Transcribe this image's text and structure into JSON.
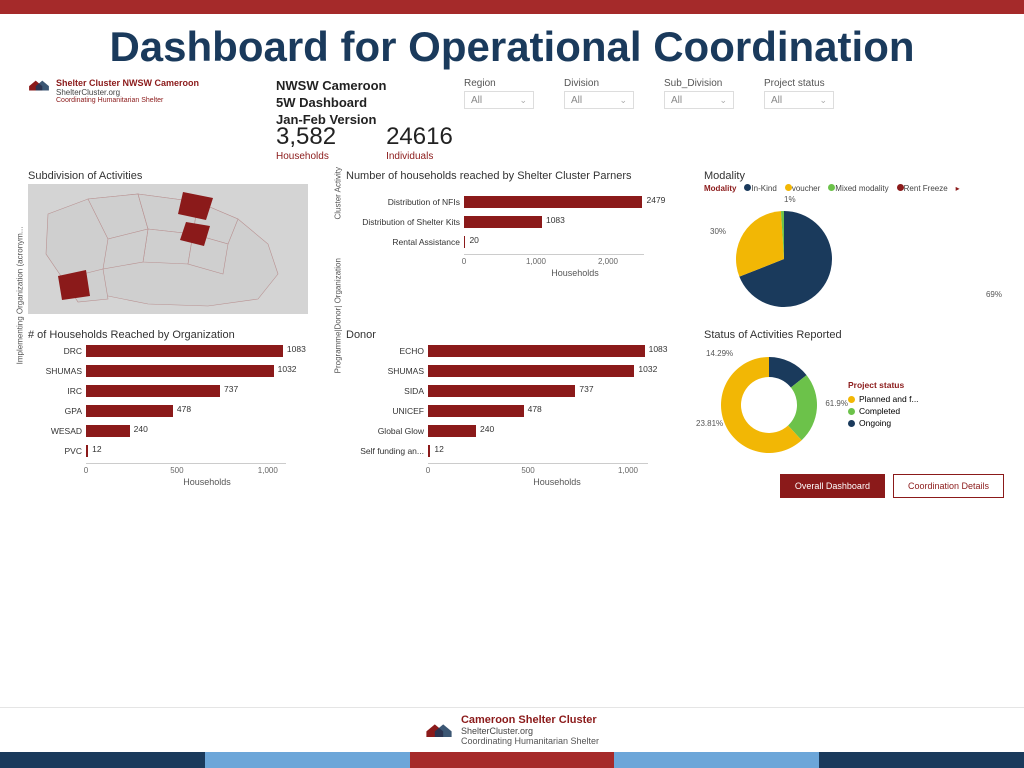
{
  "page": {
    "title": "Dashboard for Operational Coordination"
  },
  "header_logo": {
    "line1": "Shelter Cluster NWSW Cameroon",
    "line2": "ShelterCluster.org",
    "line3": "Coordinating Humanitarian Shelter"
  },
  "dash_title": {
    "l1": "NWSW Cameroon",
    "l2": "5W Dashboard",
    "l3": "Jan-Feb Version"
  },
  "filters": [
    {
      "label": "Region",
      "value": "All"
    },
    {
      "label": "Division",
      "value": "All"
    },
    {
      "label": "Sub_Division",
      "value": "All"
    },
    {
      "label": "Project status",
      "value": "All"
    }
  ],
  "kpis": [
    {
      "value": "3,582",
      "label": "Households"
    },
    {
      "value": "24616",
      "label": "Individuals"
    }
  ],
  "colors": {
    "brand": "#8b1a1a",
    "navy": "#1a3a5c",
    "bar": "#8b1a1a",
    "pie_inkind": "#1a3a5c",
    "pie_voucher": "#f2b705",
    "pie_mixed": "#6cc24a",
    "pie_rent": "#8b1a1a",
    "donut_planned": "#f2b705",
    "donut_completed": "#6cc24a",
    "donut_ongoing": "#1a3a5c",
    "map_bg": "#cfcfcf",
    "map_hi": "#8b1a1a",
    "footer": [
      "#1a3a5c",
      "#6ca6d9",
      "#a52a2a",
      "#6ca6d9",
      "#1a3a5c"
    ]
  },
  "map": {
    "title": "Subdivision of Activities"
  },
  "hh_partners": {
    "title": "Number of households reached by Shelter Cluster Parners",
    "ylabel": "Cluster Activity",
    "xlabel": "Households",
    "label_width": 110,
    "max": 2500,
    "ticks": [
      0,
      1000,
      2000
    ],
    "tick_labels": [
      "0",
      "1,000",
      "2,000"
    ],
    "rows": [
      {
        "label": "Distribution of NFIs",
        "value": 2479
      },
      {
        "label": "Distribution of Shelter Kits",
        "value": 1083
      },
      {
        "label": "Rental Assistance",
        "value": 20
      }
    ]
  },
  "modality": {
    "title": "Modality",
    "legend_label": "Modality",
    "items": [
      {
        "label": "In-Kind",
        "color": "#1a3a5c",
        "pct": 69
      },
      {
        "label": "voucher",
        "color": "#f2b705",
        "pct": 30
      },
      {
        "label": "Mixed modality",
        "color": "#6cc24a",
        "pct": 1
      },
      {
        "label": "Rent Freeze",
        "color": "#8b1a1a",
        "pct": 0
      }
    ],
    "labels": [
      "69%",
      "30%",
      "1%"
    ]
  },
  "hh_org": {
    "title": "# of Households Reached by Organization",
    "ylabel": "Implementing Organization (acronym...",
    "xlabel": "Households",
    "label_width": 48,
    "max": 1100,
    "ticks": [
      0,
      500,
      1000
    ],
    "tick_labels": [
      "0",
      "500",
      "1,000"
    ],
    "rows": [
      {
        "label": "DRC",
        "value": 1083
      },
      {
        "label": "SHUMAS",
        "value": 1032
      },
      {
        "label": "IRC",
        "value": 737
      },
      {
        "label": "GPA",
        "value": 478
      },
      {
        "label": "WESAD",
        "value": 240
      },
      {
        "label": "PVC",
        "value": 12
      }
    ]
  },
  "donor": {
    "title": "Donor",
    "ylabel": "Programme|Donor| Organization",
    "xlabel": "Households",
    "label_width": 72,
    "max": 1100,
    "ticks": [
      0,
      500,
      1000
    ],
    "tick_labels": [
      "0",
      "500",
      "1,000"
    ],
    "rows": [
      {
        "label": "ECHO",
        "value": 1083
      },
      {
        "label": "SHUMAS",
        "value": 1032
      },
      {
        "label": "SIDA",
        "value": 737
      },
      {
        "label": "UNICEF",
        "value": 478
      },
      {
        "label": "Global Glow",
        "value": 240
      },
      {
        "label": "Self funding an...",
        "value": 12
      }
    ]
  },
  "status": {
    "title": "Status of Activities Reported",
    "legend_label": "Project status",
    "items": [
      {
        "label": "Planned and f...",
        "color": "#f2b705",
        "pct": 61.9
      },
      {
        "label": "Completed",
        "color": "#6cc24a",
        "pct": 23.81
      },
      {
        "label": "Ongoing",
        "color": "#1a3a5c",
        "pct": 14.29
      }
    ],
    "labels": [
      "61.9%",
      "23.81%",
      "14.29%"
    ]
  },
  "buttons": {
    "primary": "Overall Dashboard",
    "secondary": "Coordination Details"
  },
  "footer": {
    "l1": "Cameroon Shelter Cluster",
    "l2": "ShelterCluster.org",
    "l3": "Coordinating Humanitarian Shelter"
  }
}
